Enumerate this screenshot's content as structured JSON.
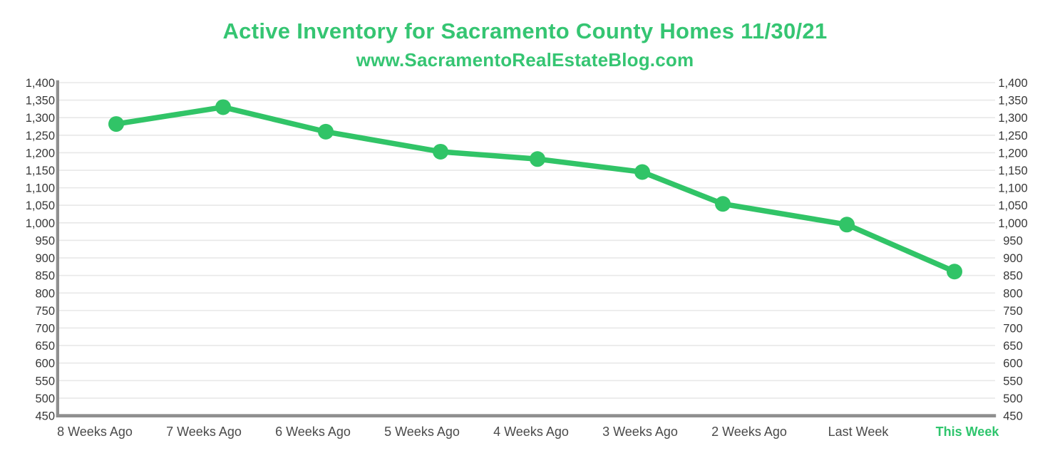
{
  "header": {
    "title": "Active Inventory for Sacramento County Homes 11/30/21",
    "subtitle": "www.SacramentoRealEstateBlog.com"
  },
  "colors": {
    "title_green": "#35c572",
    "line_green": "#31c467",
    "marker_green": "#31c467",
    "gridline": "#e8e8e8",
    "axis_gray": "#8f8f8f",
    "ytick_text": "#383838",
    "xlabel_text": "#4a4a4a",
    "highlight_label": "#2fc56d",
    "background": "#ffffff"
  },
  "chart_data": {
    "type": "line",
    "title": "Active Inventory for Sacramento County Homes 11/30/21",
    "subtitle": "www.SacramentoRealEstateBlog.com",
    "xlabel": "",
    "ylabel": "",
    "categories": [
      "8 Weeks Ago",
      "7 Weeks Ago",
      "6 Weeks Ago",
      "5 Weeks Ago",
      "4 Weeks Ago",
      "3 Weeks Ago",
      "2 Weeks Ago",
      "Last Week",
      "This Week"
    ],
    "series": [
      {
        "name": "Active Inventory",
        "values": [
          1282,
          1330,
          1260,
          1203,
          1182,
          1145,
          1054,
          995,
          861
        ]
      }
    ],
    "ylim": [
      450,
      1400
    ],
    "ytick_step": 50,
    "ytick_labels": [
      "1,400",
      "1,350",
      "1,300",
      "1,250",
      "1,200",
      "1,150",
      "1,100",
      "1,050",
      "1,000",
      "950",
      "900",
      "850",
      "800",
      "750",
      "700",
      "650",
      "600",
      "550",
      "500",
      "450"
    ],
    "y_axis_sides": [
      "left",
      "right"
    ],
    "grid": true,
    "legend": "none",
    "highlighted_category": "This Week"
  }
}
